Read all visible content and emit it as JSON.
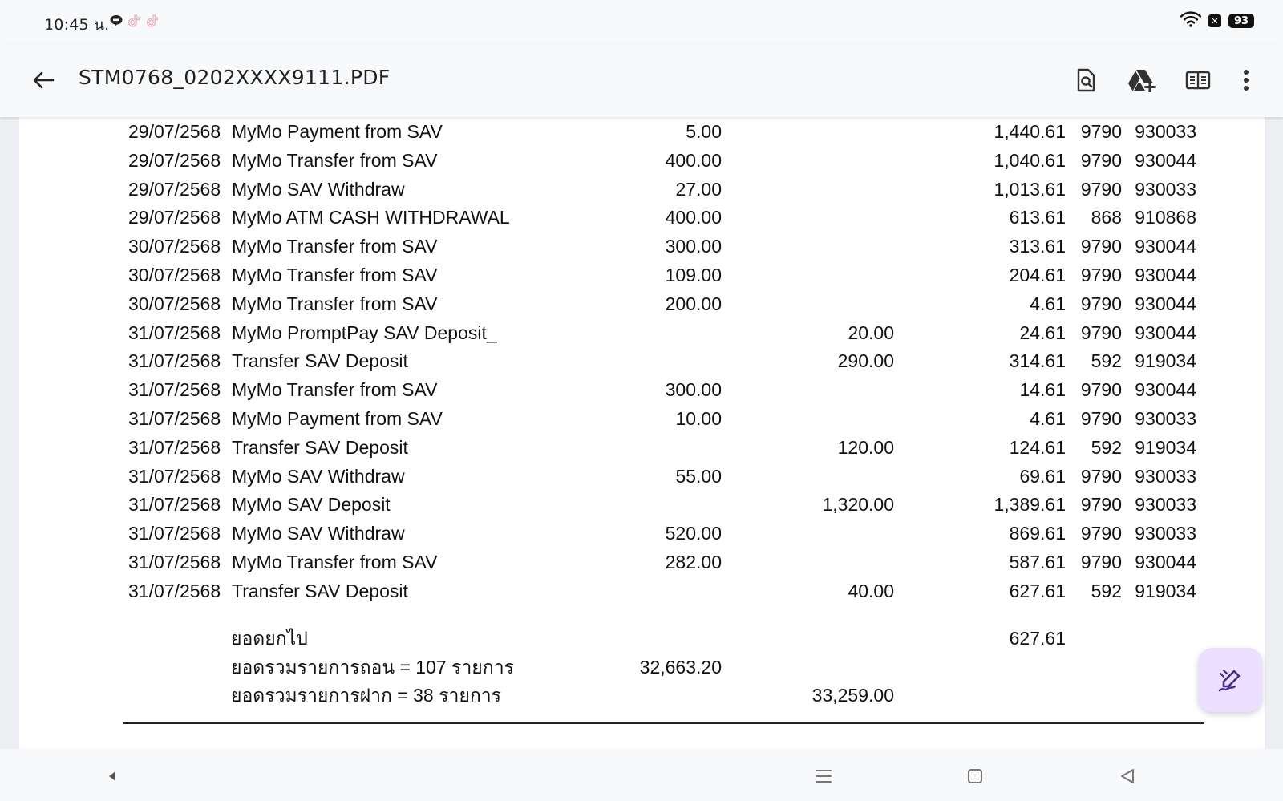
{
  "status_bar": {
    "time": "10:45 น.",
    "battery": "93",
    "notification_icons": [
      "line-icon",
      "tiktok-icon",
      "tiktok-icon"
    ]
  },
  "app_bar": {
    "title": "STM0768_0202XXXX9111.PDF",
    "actions": [
      "find-in-page-icon",
      "drive-add-icon",
      "reading-mode-icon",
      "more-vert-icon"
    ]
  },
  "statement": {
    "rows": [
      {
        "date": "29/07/2568",
        "desc": "MyMo Payment from SAV",
        "debit": "5.00",
        "credit": "",
        "balance": "1,440.61",
        "branch": "9790",
        "terminal": "930033"
      },
      {
        "date": "29/07/2568",
        "desc": "MyMo Transfer from SAV",
        "debit": "400.00",
        "credit": "",
        "balance": "1,040.61",
        "branch": "9790",
        "terminal": "930044"
      },
      {
        "date": "29/07/2568",
        "desc": "MyMo SAV Withdraw",
        "debit": "27.00",
        "credit": "",
        "balance": "1,013.61",
        "branch": "9790",
        "terminal": "930033"
      },
      {
        "date": "29/07/2568",
        "desc": "MyMo ATM CASH WITHDRAWAL",
        "debit": "400.00",
        "credit": "",
        "balance": "613.61",
        "branch": "868",
        "terminal": "910868"
      },
      {
        "date": "30/07/2568",
        "desc": "MyMo Transfer from SAV",
        "debit": "300.00",
        "credit": "",
        "balance": "313.61",
        "branch": "9790",
        "terminal": "930044"
      },
      {
        "date": "30/07/2568",
        "desc": "MyMo Transfer from SAV",
        "debit": "109.00",
        "credit": "",
        "balance": "204.61",
        "branch": "9790",
        "terminal": "930044"
      },
      {
        "date": "30/07/2568",
        "desc": "MyMo Transfer from SAV",
        "debit": "200.00",
        "credit": "",
        "balance": "4.61",
        "branch": "9790",
        "terminal": "930044"
      },
      {
        "date": "31/07/2568",
        "desc": "MyMo PromptPay SAV Deposit_",
        "debit": "",
        "credit": "20.00",
        "balance": "24.61",
        "branch": "9790",
        "terminal": "930044"
      },
      {
        "date": "31/07/2568",
        "desc": "Transfer SAV Deposit",
        "debit": "",
        "credit": "290.00",
        "balance": "314.61",
        "branch": "592",
        "terminal": "919034"
      },
      {
        "date": "31/07/2568",
        "desc": "MyMo Transfer from SAV",
        "debit": "300.00",
        "credit": "",
        "balance": "14.61",
        "branch": "9790",
        "terminal": "930044"
      },
      {
        "date": "31/07/2568",
        "desc": "MyMo Payment from SAV",
        "debit": "10.00",
        "credit": "",
        "balance": "4.61",
        "branch": "9790",
        "terminal": "930033"
      },
      {
        "date": "31/07/2568",
        "desc": "Transfer SAV Deposit",
        "debit": "",
        "credit": "120.00",
        "balance": "124.61",
        "branch": "592",
        "terminal": "919034"
      },
      {
        "date": "31/07/2568",
        "desc": "MyMo SAV Withdraw",
        "debit": "55.00",
        "credit": "",
        "balance": "69.61",
        "branch": "9790",
        "terminal": "930033"
      },
      {
        "date": "31/07/2568",
        "desc": "MyMo SAV Deposit",
        "debit": "",
        "credit": "1,320.00",
        "balance": "1,389.61",
        "branch": "9790",
        "terminal": "930033"
      },
      {
        "date": "31/07/2568",
        "desc": "MyMo SAV Withdraw",
        "debit": "520.00",
        "credit": "",
        "balance": "869.61",
        "branch": "9790",
        "terminal": "930033"
      },
      {
        "date": "31/07/2568",
        "desc": "MyMo Transfer from SAV",
        "debit": "282.00",
        "credit": "",
        "balance": "587.61",
        "branch": "9790",
        "terminal": "930044"
      },
      {
        "date": "31/07/2568",
        "desc": "Transfer SAV Deposit",
        "debit": "",
        "credit": "40.00",
        "balance": "627.61",
        "branch": "592",
        "terminal": "919034"
      }
    ],
    "summary": {
      "carry_forward_label": "ยอดยกไป",
      "carry_forward_balance": "627.61",
      "total_withdrawals_label": "ยอดรวมรายการถอน = 107 รายการ",
      "total_withdrawals_amount": "32,663.20",
      "total_deposits_label": "ยอดรวมรายการฝาก = 38 รายการ",
      "total_deposits_amount": "33,259.00"
    }
  },
  "fab": {
    "icon": "annotate-pen-icon"
  },
  "nav_bar": {
    "icons": [
      "side-panel-back-icon",
      "recents-icon",
      "home-icon",
      "back-icon"
    ]
  },
  "colors": {
    "background": "#f8f9fb",
    "page": "#ffffff",
    "fab": "#ecdfff",
    "fab_icon": "#4a2a8a",
    "text": "#111111"
  }
}
